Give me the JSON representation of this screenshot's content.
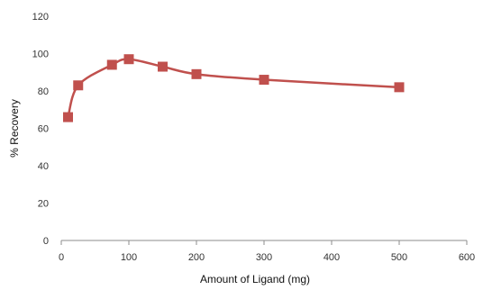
{
  "chart_data": {
    "type": "line",
    "title": "",
    "xlabel": "Amount of Ligand (mg)",
    "ylabel": "% Recovery",
    "xlim": [
      0,
      600
    ],
    "ylim": [
      0,
      120
    ],
    "x_ticks": [
      0,
      100,
      200,
      300,
      400,
      500,
      600
    ],
    "y_ticks": [
      0,
      20,
      40,
      60,
      80,
      100,
      120
    ],
    "grid": false,
    "legend": "none",
    "series": [
      {
        "color": "#c0504d",
        "marker": "square",
        "smooth": true,
        "x": [
          10,
          25,
          75,
          100,
          150,
          200,
          300,
          500
        ],
        "y": [
          66,
          83,
          94,
          97,
          93,
          89,
          86,
          82
        ]
      }
    ]
  }
}
